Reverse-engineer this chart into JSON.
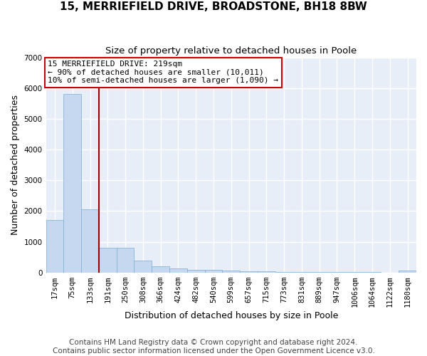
{
  "title": "15, MERRIEFIELD DRIVE, BROADSTONE, BH18 8BW",
  "subtitle": "Size of property relative to detached houses in Poole",
  "xlabel": "Distribution of detached houses by size in Poole",
  "ylabel": "Number of detached properties",
  "categories": [
    "17sqm",
    "75sqm",
    "133sqm",
    "191sqm",
    "250sqm",
    "308sqm",
    "366sqm",
    "424sqm",
    "482sqm",
    "540sqm",
    "599sqm",
    "657sqm",
    "715sqm",
    "773sqm",
    "831sqm",
    "889sqm",
    "947sqm",
    "1006sqm",
    "1064sqm",
    "1122sqm",
    "1180sqm"
  ],
  "values": [
    1700,
    5800,
    2060,
    800,
    800,
    380,
    200,
    130,
    100,
    80,
    70,
    50,
    40,
    30,
    25,
    20,
    15,
    10,
    8,
    5,
    70
  ],
  "bar_color": "#c5d8f0",
  "bar_edge_color": "#7aadd4",
  "vline_color": "#990000",
  "vline_x_pos": 3.5,
  "ylim": [
    0,
    7000
  ],
  "yticks": [
    0,
    1000,
    2000,
    3000,
    4000,
    5000,
    6000,
    7000
  ],
  "annotation_text": "15 MERRIEFIELD DRIVE: 219sqm\n← 90% of detached houses are smaller (10,011)\n10% of semi-detached houses are larger (1,090) →",
  "annotation_box_color": "#ffffff",
  "annotation_box_edge": "#cc0000",
  "footer_line1": "Contains HM Land Registry data © Crown copyright and database right 2024.",
  "footer_line2": "Contains public sector information licensed under the Open Government Licence v3.0.",
  "fig_bg_color": "#ffffff",
  "ax_bg_color": "#e8eef8",
  "grid_color": "#ffffff",
  "title_fontsize": 11,
  "subtitle_fontsize": 9.5,
  "axis_label_fontsize": 9,
  "tick_fontsize": 7.5,
  "annotation_fontsize": 8,
  "footer_fontsize": 7.5
}
